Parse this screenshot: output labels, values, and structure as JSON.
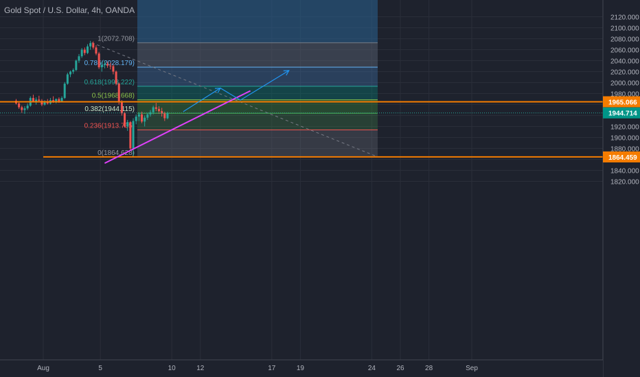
{
  "header": {
    "symbol_title": "Gold Spot / U.S. Dollar, 4h, OANDA"
  },
  "colors": {
    "background": "#1e222d",
    "up": "#26a69a",
    "down": "#ef5350",
    "orange_level": "#f57c00",
    "trendline": "#e040fb",
    "projection": "#2196f3",
    "current_price_bg": "#009688",
    "grid": "#2a2e39",
    "axis_text": "#b2b5be"
  },
  "chart_data": {
    "type": "candlestick",
    "title": "Gold Spot / U.S. Dollar, 4h, OANDA",
    "ylim": [
      1805,
      2135
    ],
    "y_ticks": [
      1820,
      1840,
      1860,
      1880,
      1900,
      1920,
      1940,
      1960,
      1980,
      2000,
      2020,
      2040,
      2060,
      2080,
      2100,
      2120
    ],
    "y_tick_labels": [
      "1820.000",
      "1840.000",
      "1860.000",
      "1880.000",
      "1900.000",
      "1920.000",
      "1940.000",
      "1960.000",
      "1980.000",
      "2000.000",
      "2020.000",
      "2040.000",
      "2060.000",
      "2080.000",
      "2100.000",
      "2120.000"
    ],
    "x_ticks": [
      {
        "day": 1,
        "label": "Aug"
      },
      {
        "day": 5,
        "label": "5"
      },
      {
        "day": 10,
        "label": "10"
      },
      {
        "day": 12,
        "label": "12"
      },
      {
        "day": 17,
        "label": "17"
      },
      {
        "day": 19,
        "label": "19"
      },
      {
        "day": 24,
        "label": "24"
      },
      {
        "day": 26,
        "label": "26"
      },
      {
        "day": 28,
        "label": "28"
      },
      {
        "day": 31,
        "label": "Sep"
      }
    ],
    "ohlc": [
      [
        -0.9,
        1967,
        1970,
        1960,
        1962
      ],
      [
        -0.7,
        1962,
        1965,
        1952,
        1955
      ],
      [
        -0.5,
        1955,
        1958,
        1945,
        1950
      ],
      [
        -0.3,
        1950,
        1957,
        1943,
        1953
      ],
      [
        -0.1,
        1953,
        1962,
        1950,
        1958
      ],
      [
        0.1,
        1958,
        1975,
        1956,
        1972
      ],
      [
        0.3,
        1972,
        1978,
        1964,
        1966
      ],
      [
        0.5,
        1966,
        1973,
        1960,
        1969
      ],
      [
        0.7,
        1969,
        1976,
        1964,
        1967
      ],
      [
        0.9,
        1967,
        1970,
        1957,
        1960
      ],
      [
        1.1,
        1960,
        1968,
        1958,
        1964
      ],
      [
        1.3,
        1964,
        1970,
        1960,
        1962
      ],
      [
        1.5,
        1962,
        1972,
        1960,
        1968
      ],
      [
        1.7,
        1968,
        1975,
        1963,
        1965
      ],
      [
        1.9,
        1965,
        1971,
        1962,
        1970
      ],
      [
        2.1,
        1970,
        1973,
        1963,
        1966
      ],
      [
        2.3,
        1966,
        1975,
        1964,
        1972
      ],
      [
        2.5,
        1972,
        2001,
        1970,
        1998
      ],
      [
        2.7,
        1998,
        2018,
        1996,
        2015
      ],
      [
        2.9,
        2015,
        2022,
        2010,
        2020
      ],
      [
        3.1,
        2020,
        2026,
        2016,
        2023
      ],
      [
        3.3,
        2023,
        2042,
        2021,
        2040
      ],
      [
        3.5,
        2040,
        2052,
        2036,
        2048
      ],
      [
        3.7,
        2048,
        2063,
        2045,
        2060
      ],
      [
        3.9,
        2060,
        2064,
        2050,
        2054
      ],
      [
        4.1,
        2054,
        2070,
        2052,
        2066
      ],
      [
        4.3,
        2066,
        2076,
        2060,
        2072
      ],
      [
        4.5,
        2072,
        2075,
        2061,
        2064
      ],
      [
        4.7,
        2064,
        2068,
        2050,
        2053
      ],
      [
        4.9,
        2053,
        2056,
        2025,
        2028
      ],
      [
        5.1,
        2028,
        2038,
        2020,
        2032
      ],
      [
        5.3,
        2032,
        2040,
        2026,
        2034
      ],
      [
        5.5,
        2034,
        2038,
        2027,
        2031
      ],
      [
        5.7,
        2031,
        2036,
        2024,
        2030
      ],
      [
        5.9,
        2030,
        2033,
        2015,
        2020
      ],
      [
        6.1,
        2020,
        2022,
        1995,
        1998
      ],
      [
        6.3,
        1998,
        2000,
        1960,
        1965
      ],
      [
        6.5,
        1965,
        1968,
        1940,
        1944
      ],
      [
        6.7,
        1944,
        1946,
        1918,
        1920
      ],
      [
        6.9,
        1920,
        1932,
        1912,
        1928
      ],
      [
        7.1,
        1928,
        1930,
        1875,
        1880
      ],
      [
        7.3,
        1880,
        1935,
        1864,
        1930
      ],
      [
        7.5,
        1930,
        1942,
        1924,
        1938
      ],
      [
        7.7,
        1938,
        1946,
        1930,
        1942
      ],
      [
        7.9,
        1942,
        1947,
        1926,
        1929
      ],
      [
        8.1,
        1929,
        1940,
        1920,
        1936
      ],
      [
        8.3,
        1936,
        1945,
        1932,
        1942
      ],
      [
        8.5,
        1942,
        1950,
        1938,
        1946
      ],
      [
        8.7,
        1946,
        1958,
        1942,
        1955
      ],
      [
        8.9,
        1955,
        1963,
        1948,
        1952
      ],
      [
        9.1,
        1952,
        1957,
        1943,
        1948
      ],
      [
        9.3,
        1948,
        1954,
        1938,
        1944
      ],
      [
        9.5,
        1944,
        1947,
        1930,
        1935
      ],
      [
        9.7,
        1935,
        1947,
        1933,
        1944
      ]
    ],
    "fib_retracement": [
      {
        "ratio": 1,
        "label": "1(2072.708)",
        "price": 2072.708
      },
      {
        "ratio": 0.786,
        "label": "0.786(2028.179)",
        "price": 2028.179
      },
      {
        "ratio": 0.618,
        "label": "0.618(1993.222)",
        "price": 1993.222
      },
      {
        "ratio": 0.5,
        "label": "0.5(1968.668)",
        "price": 1968.668
      },
      {
        "ratio": 0.382,
        "label": "0.382(1944.115)",
        "price": 1944.115
      },
      {
        "ratio": 0.236,
        "label": "0.236(1913.735)",
        "price": 1913.735
      },
      {
        "ratio": 0,
        "label": "0(1864.628)",
        "price": 1864.628
      }
    ],
    "horizontal_levels": [
      {
        "price": 1965.066,
        "label": "1965.066"
      },
      {
        "price": 1864.459,
        "label": "1864.459"
      }
    ],
    "current_price": {
      "price": 1944.714,
      "label": "1944.714"
    },
    "trendline": [
      [
        5.3,
        1853
      ],
      [
        15.5,
        1985
      ]
    ],
    "projection_path": [
      [
        10.8,
        1947
      ],
      [
        13.4,
        1990
      ],
      [
        14.8,
        1968
      ],
      [
        18.2,
        2022
      ]
    ]
  }
}
